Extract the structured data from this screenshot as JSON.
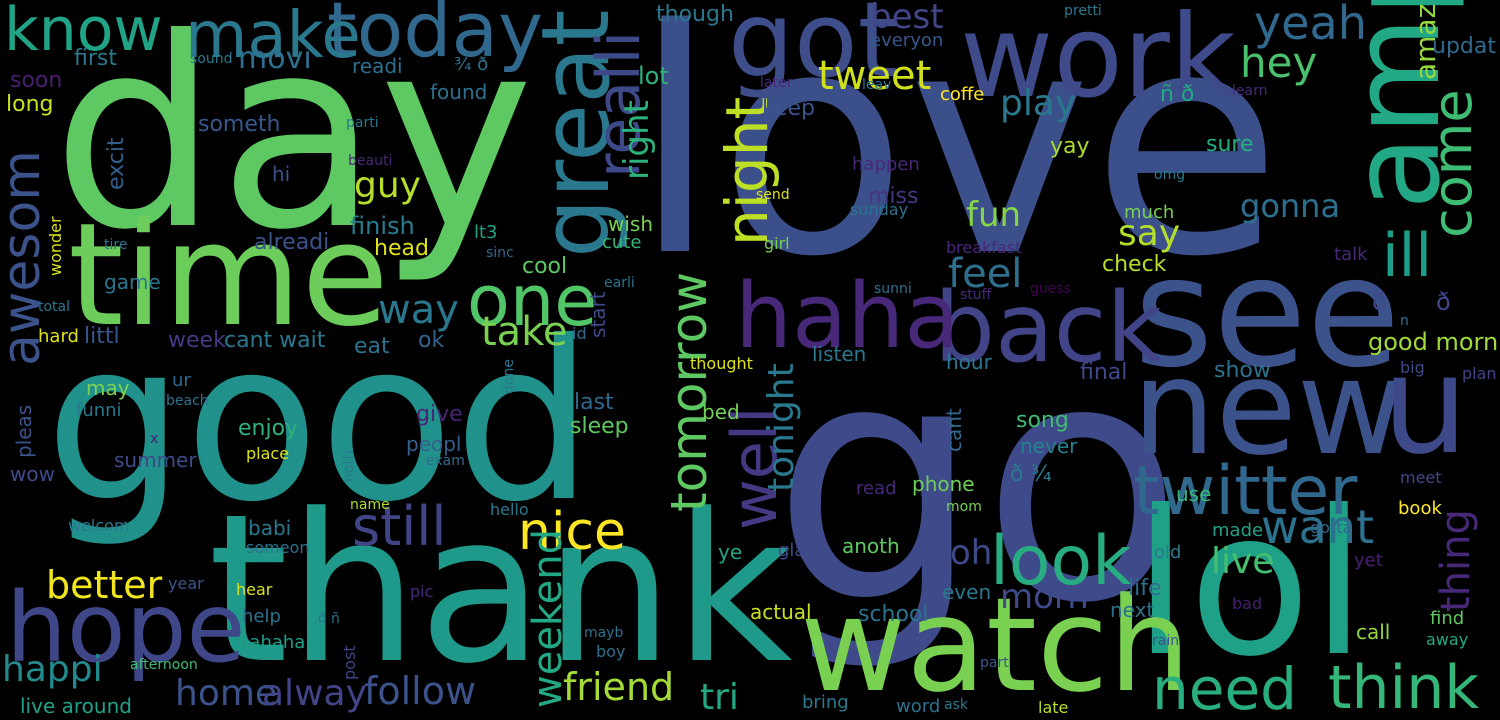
{
  "words": [
    {
      "text": "love",
      "color": "#3b4f8a"
    },
    {
      "text": "go",
      "color": "#3e4a89"
    },
    {
      "text": "good",
      "color": "#21918c"
    },
    {
      "text": "day",
      "color": "#5ec962"
    },
    {
      "text": "thank",
      "color": "#1f9a8a"
    },
    {
      "text": "time",
      "color": "#6ccd5a"
    },
    {
      "text": "see",
      "color": "#3b528b"
    },
    {
      "text": "lol",
      "color": "#1fa187"
    },
    {
      "text": "watch",
      "color": "#7ad151"
    },
    {
      "text": "new",
      "color": "#3b528b"
    },
    {
      "text": "u",
      "color": "#3e4989"
    },
    {
      "text": "work",
      "color": "#3e4a89"
    },
    {
      "text": "amp",
      "color": "#22a884"
    },
    {
      "text": "got",
      "color": "#3d4e8a"
    },
    {
      "text": "back",
      "color": "#414487"
    },
    {
      "text": "haha",
      "color": "#482878"
    },
    {
      "text": "hope",
      "color": "#3f4788"
    },
    {
      "text": "great",
      "color": "#2a788e"
    },
    {
      "text": "today",
      "color": "#31688e"
    },
    {
      "text": "make",
      "color": "#2a788e"
    },
    {
      "text": "know",
      "color": "#20a386"
    },
    {
      "text": "one",
      "color": "#52c569"
    },
    {
      "text": "twitter",
      "color": "#31688e"
    },
    {
      "text": "look",
      "color": "#27ad81"
    },
    {
      "text": "think",
      "color": "#35b779"
    },
    {
      "text": "need",
      "color": "#29af7f"
    },
    {
      "text": "awesom",
      "color": "#3b528b"
    },
    {
      "text": "realli",
      "color": "#3e4989"
    },
    {
      "text": "night",
      "color": "#bddf26"
    },
    {
      "text": "well",
      "color": "#443983"
    },
    {
      "text": "tomorrow",
      "color": "#5ec962"
    },
    {
      "text": "come",
      "color": "#3fbc73"
    },
    {
      "text": "ill",
      "color": "#1f9e89"
    },
    {
      "text": "nice",
      "color": "#fde725"
    },
    {
      "text": "still",
      "color": "#414487"
    },
    {
      "text": "want",
      "color": "#2c728e"
    },
    {
      "text": "friend",
      "color": "#a5db36"
    },
    {
      "text": "follow",
      "color": "#3b528b"
    },
    {
      "text": "better",
      "color": "#f1e51d"
    },
    {
      "text": "weekend",
      "color": "#22a884"
    },
    {
      "text": "yeah",
      "color": "#31688e"
    },
    {
      "text": "hey",
      "color": "#4ac16d"
    },
    {
      "text": "tweet",
      "color": "#d0e11c"
    },
    {
      "text": "thing",
      "color": "#482878"
    },
    {
      "text": "tonight",
      "color": "#2a788e"
    },
    {
      "text": "home",
      "color": "#3b528b"
    },
    {
      "text": "happi",
      "color": "#238a8d"
    },
    {
      "text": "alway",
      "color": "#414487"
    },
    {
      "text": "feel",
      "color": "#2d708e"
    },
    {
      "text": "play",
      "color": "#2a788e"
    },
    {
      "text": "take",
      "color": "#7ad151"
    },
    {
      "text": "way",
      "color": "#2a788e"
    },
    {
      "text": "say",
      "color": "#b5de2b"
    },
    {
      "text": "fun",
      "color": "#86d549"
    },
    {
      "text": "gonna",
      "color": "#2d708e"
    },
    {
      "text": "guy",
      "color": "#b5de2b"
    },
    {
      "text": "right",
      "color": "#2db27d"
    },
    {
      "text": "morn",
      "color": "#3e4a89"
    },
    {
      "text": "live",
      "color": "#44bf70"
    },
    {
      "text": "tri",
      "color": "#22a884"
    },
    {
      "text": "good morn",
      "color": "#9fda3a"
    },
    {
      "text": "oh",
      "color": "#3e4989"
    },
    {
      "text": "best",
      "color": "#404688"
    },
    {
      "text": "movi",
      "color": "#2e6e8e"
    },
    {
      "text": "amaz",
      "color": "#95d840"
    },
    {
      "text": "updat",
      "color": "#31688e"
    },
    {
      "text": "first",
      "color": "#2a788e"
    },
    {
      "text": "long",
      "color": "#c8e020"
    },
    {
      "text": "readi",
      "color": "#2d708e"
    },
    {
      "text": "though",
      "color": "#2a788e"
    },
    {
      "text": "lot",
      "color": "#2db27d"
    },
    {
      "text": "keep",
      "color": "#3b528b"
    },
    {
      "text": "coffe",
      "color": "#fde725"
    },
    {
      "text": "found",
      "color": "#2c728e"
    },
    {
      "text": "someth",
      "color": "#38588c"
    },
    {
      "text": "everyon",
      "color": "#38588c"
    },
    {
      "text": "finish",
      "color": "#287d8e"
    },
    {
      "text": "alreadi",
      "color": "#3b528b"
    },
    {
      "text": "head",
      "color": "#dde318"
    },
    {
      "text": "cool",
      "color": "#5ec962"
    },
    {
      "text": "check",
      "color": "#b5de2b"
    },
    {
      "text": "sure",
      "color": "#26ad81"
    },
    {
      "text": "yay",
      "color": "#addc30"
    },
    {
      "text": "miss",
      "color": "#453781"
    },
    {
      "text": "sunday",
      "color": "#2c728e"
    },
    {
      "text": "wish",
      "color": "#7ad151"
    },
    {
      "text": "cute",
      "color": "#35b779"
    },
    {
      "text": "hi",
      "color": "#3b528b"
    },
    {
      "text": "excit",
      "color": "#355f8d"
    },
    {
      "text": "soon",
      "color": "#481f70"
    },
    {
      "text": "littl",
      "color": "#39568c"
    },
    {
      "text": "week",
      "color": "#443983"
    },
    {
      "text": "cant wait",
      "color": "#2a788e"
    },
    {
      "text": "eat",
      "color": "#2c728e"
    },
    {
      "text": "ok",
      "color": "#33638d"
    },
    {
      "text": "listen",
      "color": "#2a788e"
    },
    {
      "text": "hour",
      "color": "#2a788e"
    },
    {
      "text": "show",
      "color": "#2c728e"
    },
    {
      "text": "final",
      "color": "#3e4a89"
    },
    {
      "text": "last",
      "color": "#31688e"
    },
    {
      "text": "sleep",
      "color": "#5ec962"
    },
    {
      "text": "enjoy",
      "color": "#2db27d"
    },
    {
      "text": "give",
      "color": "#482475"
    },
    {
      "text": "peopl",
      "color": "#355f8d"
    },
    {
      "text": "summer",
      "color": "#3e4a89"
    },
    {
      "text": "game",
      "color": "#2a788e"
    },
    {
      "text": "hard",
      "color": "#dde318"
    },
    {
      "text": "funni",
      "color": "#2a788e"
    },
    {
      "text": "wow",
      "color": "#3e4a89"
    },
    {
      "text": "may",
      "color": "#7ad151"
    },
    {
      "text": "ur",
      "color": "#31688e"
    },
    {
      "text": "pleas",
      "color": "#3b528b"
    },
    {
      "text": "song",
      "color": "#3fbc73"
    },
    {
      "text": "never",
      "color": "#26828e"
    },
    {
      "text": "phone",
      "color": "#6ece58"
    },
    {
      "text": "read",
      "color": "#482878"
    },
    {
      "text": "use",
      "color": "#35b779"
    },
    {
      "text": "life",
      "color": "#2e6e8e"
    },
    {
      "text": "next",
      "color": "#2c728e"
    },
    {
      "text": "call",
      "color": "#95d840"
    },
    {
      "text": "find",
      "color": "#5ec962"
    },
    {
      "text": "school",
      "color": "#2c728e"
    },
    {
      "text": "even",
      "color": "#2a788e"
    },
    {
      "text": "actual",
      "color": "#cae11f"
    },
    {
      "text": "anoth",
      "color": "#5ec962"
    },
    {
      "text": "help",
      "color": "#2c728e"
    },
    {
      "text": "babi",
      "color": "#2a788e"
    },
    {
      "text": "ye",
      "color": "#20a486"
    },
    {
      "text": "glad",
      "color": "#3e4989"
    },
    {
      "text": "bed",
      "color": "#73d056"
    },
    {
      "text": "cant",
      "color": "#31688e"
    },
    {
      "text": "start",
      "color": "#3e4989"
    },
    {
      "text": "id",
      "color": "#31688e"
    },
    {
      "text": "lt3",
      "color": "#20a486"
    },
    {
      "text": "old",
      "color": "#2a788e"
    },
    {
      "text": "made",
      "color": "#1fa187"
    },
    {
      "text": "gotta",
      "color": "#31688e"
    },
    {
      "text": "book",
      "color": "#fde725"
    },
    {
      "text": "yet",
      "color": "#481f70"
    },
    {
      "text": "big",
      "color": "#3e4a89"
    },
    {
      "text": "plan",
      "color": "#414487"
    },
    {
      "text": "meet",
      "color": "#3e4989"
    },
    {
      "text": "bad",
      "color": "#481f70"
    },
    {
      "text": "away",
      "color": "#22a884"
    },
    {
      "text": "rain",
      "color": "#3b528b"
    },
    {
      "text": "part",
      "color": "#38588c"
    },
    {
      "text": "late",
      "color": "#b5de2b"
    },
    {
      "text": "word",
      "color": "#2c728e"
    },
    {
      "text": "ask",
      "color": "#2a788e"
    },
    {
      "text": "bring",
      "color": "#2a788e"
    },
    {
      "text": "boy",
      "color": "#2c728e"
    },
    {
      "text": "mayb",
      "color": "#2c728e"
    },
    {
      "text": "hello",
      "color": "#2a788e"
    },
    {
      "text": "mom",
      "color": "#7ad151"
    },
    {
      "text": "name",
      "color": "#addc30"
    },
    {
      "text": "someon",
      "color": "#2c728e"
    },
    {
      "text": "welcom",
      "color": "#2a788e"
    },
    {
      "text": "hear",
      "color": "#dde318"
    },
    {
      "text": "year",
      "color": "#39568c"
    },
    {
      "text": "pic",
      "color": "#482878"
    },
    {
      "text": "hahaha",
      "color": "#1f9e89"
    },
    {
      "text": "post",
      "color": "#414487"
    },
    {
      "text": "afternoon",
      "color": "#3fbc73"
    },
    {
      "text": "live around",
      "color": "#1fa187"
    },
    {
      "text": "place",
      "color": "#dde318"
    },
    {
      "text": "noth",
      "color": "#2a788e"
    },
    {
      "text": "exam",
      "color": "#31688e"
    },
    {
      "text": "done",
      "color": "#2a788e"
    },
    {
      "text": "beach",
      "color": "#2c728e"
    },
    {
      "text": "x",
      "color": "#481f70"
    },
    {
      "text": "total",
      "color": "#2a788e"
    },
    {
      "text": "wonder",
      "color": "#dde318"
    },
    {
      "text": "tire",
      "color": "#2c728e"
    },
    {
      "text": "sinc",
      "color": "#31688e"
    },
    {
      "text": "earli",
      "color": "#2c728e"
    },
    {
      "text": "girl",
      "color": "#7ad151"
    },
    {
      "text": "send",
      "color": "#dde318"
    },
    {
      "text": "breakfast",
      "color": "#482878"
    },
    {
      "text": "talk",
      "color": "#482878"
    },
    {
      "text": "stuff",
      "color": "#482878"
    },
    {
      "text": "guess",
      "color": "#440154"
    },
    {
      "text": "sunni",
      "color": "#2c728e"
    },
    {
      "text": "thought",
      "color": "#dde318"
    },
    {
      "text": "happen",
      "color": "#482878"
    },
    {
      "text": "omg",
      "color": "#2a788e"
    },
    {
      "text": "much",
      "color": "#7ad151"
    },
    {
      "text": "beauti",
      "color": "#482878"
    },
    {
      "text": "parti",
      "color": "#2a788e"
    },
    {
      "text": "sound",
      "color": "#2a788e"
    },
    {
      "text": "later",
      "color": "#482878"
    },
    {
      "text": "leav",
      "color": "#2c728e"
    },
    {
      "text": "learn",
      "color": "#482878"
    },
    {
      "text": "pretti",
      "color": "#2a788e"
    },
    {
      "text": "¾ ð",
      "color": "#2c728e"
    },
    {
      "text": "ñ ð",
      "color": "#22a884"
    },
    {
      "text": "ð",
      "color": "#3e4989"
    },
    {
      "text": "ð",
      "color": "#3e4989"
    },
    {
      "text": "n",
      "color": "#2c728e"
    },
    {
      "text": "ð ¾",
      "color": "#2a788e"
    },
    {
      "text": "ð ñ",
      "color": "#2c728e"
    }
  ]
}
